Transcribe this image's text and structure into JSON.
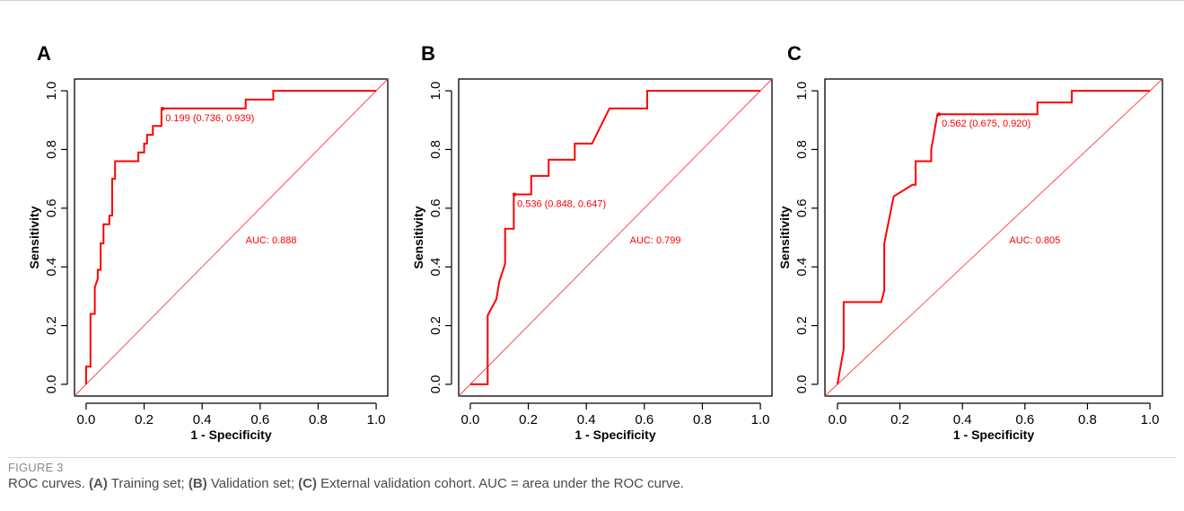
{
  "figure": {
    "label": "FIGURE 3",
    "caption": {
      "lead": "ROC curves. ",
      "a_tag": "(A)",
      "a_text": " Training set; ",
      "b_tag": "(B)",
      "b_text": " Validation set; ",
      "c_tag": "(C)",
      "c_text": " External validation cohort. AUC = area under the ROC curve."
    }
  },
  "colors": {
    "curve": "#ff0000",
    "diagonal": "#ff3b3b",
    "axis": "#000000"
  },
  "chart_data": [
    {
      "type": "line",
      "panel_label": "A",
      "xlabel": "1 - Specificity",
      "ylabel": "Sensitivity",
      "xlim": [
        0,
        1
      ],
      "ylim": [
        0,
        1
      ],
      "x_ticks": [
        "0.0",
        "0.2",
        "0.4",
        "0.6",
        "0.8",
        "1.0"
      ],
      "y_ticks": [
        "0.0",
        "0.2",
        "0.4",
        "0.6",
        "0.8",
        "1.0"
      ],
      "grid": false,
      "reference_line": "diagonal",
      "x": [
        0,
        0,
        0.015,
        0.015,
        0.03,
        0.03,
        0.04,
        0.04,
        0.05,
        0.05,
        0.06,
        0.06,
        0.08,
        0.08,
        0.09,
        0.09,
        0.1,
        0.1,
        0.18,
        0.18,
        0.2,
        0.2,
        0.21,
        0.21,
        0.23,
        0.23,
        0.26,
        0.26,
        0.55,
        0.55,
        0.645,
        0.645,
        1.0
      ],
      "y": [
        0,
        0.06,
        0.06,
        0.24,
        0.24,
        0.33,
        0.36,
        0.39,
        0.39,
        0.48,
        0.48,
        0.545,
        0.545,
        0.575,
        0.575,
        0.7,
        0.7,
        0.76,
        0.76,
        0.79,
        0.79,
        0.82,
        0.82,
        0.85,
        0.85,
        0.88,
        0.88,
        0.94,
        0.94,
        0.97,
        0.97,
        1.0,
        1.0
      ],
      "cutoff": {
        "x": 0.264,
        "y": 0.939,
        "label": "0.199 (0.736, 0.939)"
      },
      "auc_label": "AUC: 0.888",
      "auc_label_pos": {
        "x": 0.55,
        "y": 0.48
      }
    },
    {
      "type": "line",
      "panel_label": "B",
      "xlabel": "1 - Specificity",
      "ylabel": "Sensitivity",
      "xlim": [
        0,
        1
      ],
      "ylim": [
        0,
        1
      ],
      "x_ticks": [
        "0.0",
        "0.2",
        "0.4",
        "0.6",
        "0.8",
        "1.0"
      ],
      "y_ticks": [
        "0.0",
        "0.2",
        "0.4",
        "0.6",
        "0.8",
        "1.0"
      ],
      "grid": false,
      "reference_line": "diagonal",
      "x": [
        0,
        0.06,
        0.06,
        0.09,
        0.09,
        0.1,
        0.1,
        0.12,
        0.12,
        0.15,
        0.15,
        0.18,
        0.18,
        0.21,
        0.21,
        0.27,
        0.27,
        0.33,
        0.33,
        0.36,
        0.36,
        0.42,
        0.42,
        0.48,
        0.48,
        0.61,
        0.61,
        1.0
      ],
      "y": [
        0,
        0,
        0.235,
        0.29,
        0.29,
        0.35,
        0.35,
        0.41,
        0.53,
        0.53,
        0.647,
        0.647,
        0.647,
        0.647,
        0.71,
        0.71,
        0.765,
        0.765,
        0.765,
        0.765,
        0.82,
        0.82,
        0.82,
        0.94,
        0.94,
        0.94,
        1.0,
        1.0
      ],
      "cutoff": {
        "x": 0.152,
        "y": 0.647,
        "label": "0.536 (0.848, 0.647)"
      },
      "auc_label": "AUC: 0.799",
      "auc_label_pos": {
        "x": 0.55,
        "y": 0.48
      }
    },
    {
      "type": "line",
      "panel_label": "C",
      "xlabel": "1 - Specificity",
      "ylabel": "Sensitivity",
      "xlim": [
        0,
        1
      ],
      "ylim": [
        0,
        1
      ],
      "x_ticks": [
        "0.0",
        "0.2",
        "0.4",
        "0.6",
        "0.8",
        "1.0"
      ],
      "y_ticks": [
        "0.0",
        "0.2",
        "0.4",
        "0.6",
        "0.8",
        "1.0"
      ],
      "grid": false,
      "reference_line": "diagonal",
      "x": [
        0,
        0.02,
        0.02,
        0.14,
        0.15,
        0.15,
        0.18,
        0.18,
        0.24,
        0.25,
        0.25,
        0.3,
        0.3,
        0.32,
        0.32,
        0.36,
        0.36,
        0.64,
        0.64,
        0.75,
        0.75,
        1.0
      ],
      "y": [
        0,
        0.12,
        0.28,
        0.28,
        0.32,
        0.48,
        0.64,
        0.64,
        0.68,
        0.68,
        0.76,
        0.76,
        0.8,
        0.92,
        0.92,
        0.92,
        0.92,
        0.92,
        0.96,
        0.96,
        1.0,
        1.0
      ],
      "cutoff": {
        "x": 0.325,
        "y": 0.92,
        "label": "0.562 (0.675, 0.920)"
      },
      "auc_label": "AUC: 0.805",
      "auc_label_pos": {
        "x": 0.55,
        "y": 0.48
      }
    }
  ]
}
